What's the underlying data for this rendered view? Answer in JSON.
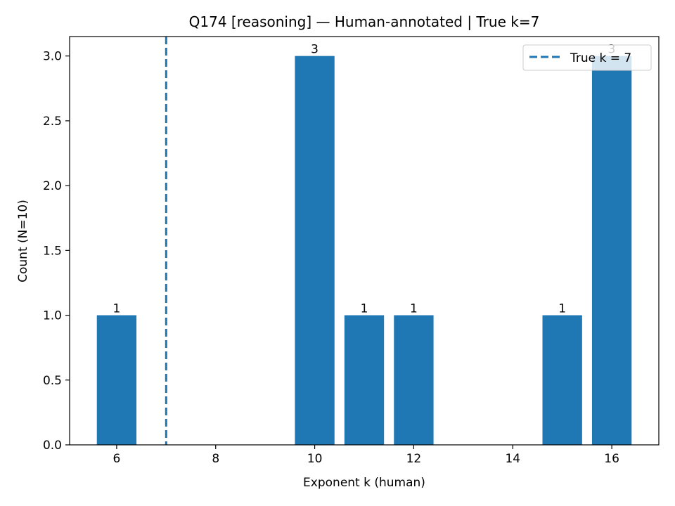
{
  "chart_data": {
    "type": "bar",
    "title": "Q174 [reasoning] — Human-annotated | True k=7",
    "xlabel": "Exponent k (human)",
    "ylabel": "Count (N=10)",
    "x": [
      6,
      10,
      11,
      12,
      15,
      16
    ],
    "values": [
      1,
      3,
      1,
      1,
      1,
      3
    ],
    "bar_labels": [
      "1",
      "3",
      "1",
      "1",
      "1",
      "3"
    ],
    "xlim": [
      5.05,
      16.95
    ],
    "ylim": [
      0,
      3.15
    ],
    "xticks": [
      6,
      8,
      10,
      12,
      14,
      16
    ],
    "xtick_labels": [
      "6",
      "8",
      "10",
      "12",
      "14",
      "16"
    ],
    "yticks": [
      0,
      0.5,
      1,
      1.5,
      2,
      2.5,
      3
    ],
    "ytick_labels": [
      "0.0",
      "0.5",
      "1.0",
      "1.5",
      "2.0",
      "2.5",
      "3.0"
    ],
    "reference_line": {
      "x": 7,
      "style": "dashed",
      "label": "True k = 7"
    },
    "legend": {
      "position": "top-right",
      "entries": [
        "True k = 7"
      ]
    },
    "grid": false,
    "bar_color": "#1f77b4",
    "line_color": "#1f77b4"
  }
}
